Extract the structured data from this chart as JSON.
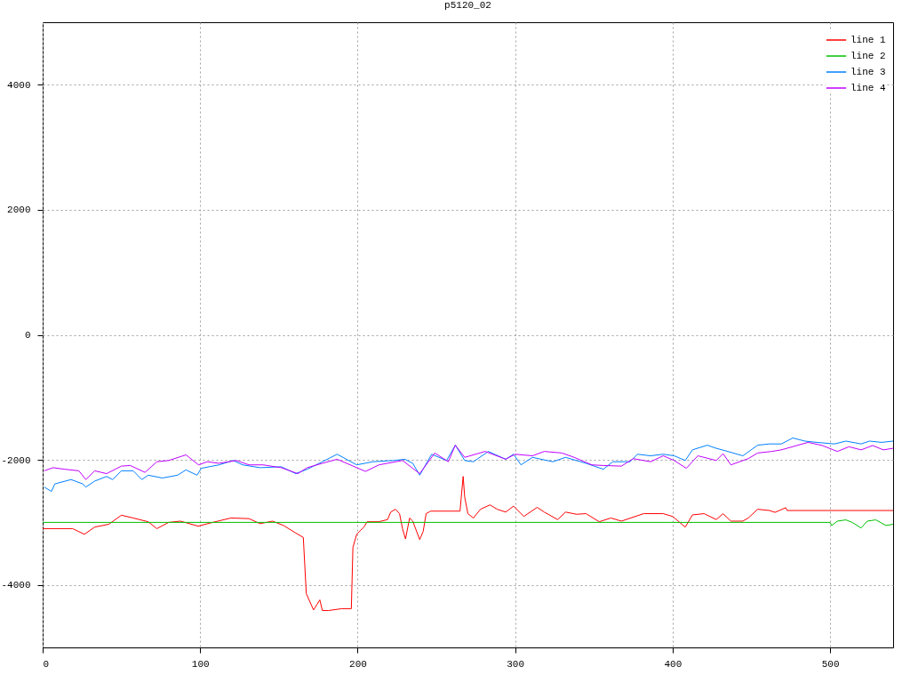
{
  "chart_data": {
    "type": "line",
    "title": "p5120_02",
    "xlim": [
      0,
      540
    ],
    "xticks": [
      0,
      100,
      200,
      300,
      400,
      500
    ],
    "ylim": [
      -5000,
      5000
    ],
    "yticks": [
      -4000,
      -2000,
      0,
      2000,
      4000
    ],
    "grid": true,
    "legend": "top right",
    "marker": "none",
    "line_style": "solid",
    "series": [
      {
        "name": "line 1",
        "color": "#ff0000",
        "x": [
          0,
          19,
          26.5,
          33,
          42,
          50,
          57.5,
          67,
          72.5,
          80,
          87.5,
          98.7,
          108,
          119.5,
          131,
          138,
          146,
          153,
          160.7,
          165.5,
          167.4,
          172,
          176,
          177.6,
          181.5,
          190,
          196,
          197,
          199.4,
          204,
          206,
          213.5,
          219,
          221,
          224,
          226.6,
          228.5,
          230.4,
          233,
          235,
          239.4,
          241.6,
          243.5,
          246.3,
          265,
          267,
          268,
          270,
          273.5,
          278,
          284,
          288.6,
          294,
          299,
          305.5,
          314,
          318.5,
          327,
          332,
          339,
          345,
          353.4,
          360.8,
          367.5,
          381.6,
          394,
          400,
          408,
          412.6,
          420,
          427.7,
          432,
          437,
          444.6,
          448,
          454,
          461.5,
          465,
          471.8,
          472.8,
          540
        ],
        "values": [
          -3100,
          -3100,
          -3190,
          -3075,
          -3030,
          -2885,
          -2930,
          -2990,
          -3100,
          -3000,
          -2980,
          -3060,
          -3000,
          -2930,
          -2940,
          -3020,
          -2980,
          -3050,
          -3170,
          -3240,
          -4140,
          -4400,
          -4240,
          -4410,
          -4410,
          -4380,
          -4380,
          -3400,
          -3190,
          -3075,
          -2990,
          -2990,
          -2955,
          -2835,
          -2790,
          -2860,
          -3100,
          -3265,
          -2930,
          -2980,
          -3275,
          -3145,
          -2860,
          -2820,
          -2820,
          -2265,
          -2600,
          -2860,
          -2930,
          -2790,
          -2720,
          -2790,
          -2835,
          -2740,
          -2905,
          -2760,
          -2835,
          -2955,
          -2835,
          -2870,
          -2860,
          -2990,
          -2930,
          -2980,
          -2860,
          -2860,
          -2905,
          -3075,
          -2880,
          -2860,
          -2955,
          -2860,
          -2980,
          -2980,
          -2930,
          -2790,
          -2810,
          -2840,
          -2765,
          -2810,
          -2810
        ]
      },
      {
        "name": "line 2",
        "color": "#00c000",
        "x": [
          0,
          500,
          501,
          504.6,
          510,
          514,
          519.7,
          523.5,
          529,
          535.5,
          540
        ],
        "values": [
          -3000,
          -3000,
          -3050,
          -2980,
          -2960,
          -3000,
          -3090,
          -2980,
          -2960,
          -3050,
          -3030
        ]
      },
      {
        "name": "line 3",
        "color": "#0080ff",
        "x": [
          1,
          5.6,
          7.7,
          18,
          25.5,
          27.4,
          33,
          40.6,
          44.4,
          50,
          57.5,
          63,
          67,
          76,
          85.7,
          91,
          98,
          100.7,
          112,
          121,
          127,
          138,
          151.5,
          160.7,
          168,
          177.6,
          187,
          199.4,
          209.7,
          222.7,
          230,
          235,
          239.4,
          247,
          256.5,
          262,
          268,
          273.5,
          283,
          294,
          299,
          303.7,
          311,
          324,
          332,
          345,
          356,
          362,
          373,
          377.7,
          386,
          394,
          401,
          408,
          412.6,
          422,
          427.7,
          435,
          444.6,
          454,
          461.5,
          469,
          476.3,
          484,
          491.5,
          502.8,
          510,
          519.7,
          525,
          532.7,
          540
        ],
        "values": [
          -2435,
          -2505,
          -2385,
          -2315,
          -2385,
          -2435,
          -2340,
          -2265,
          -2315,
          -2175,
          -2175,
          -2315,
          -2245,
          -2290,
          -2245,
          -2160,
          -2245,
          -2135,
          -2080,
          -2010,
          -2080,
          -2125,
          -2110,
          -2220,
          -2150,
          -2030,
          -1910,
          -2080,
          -2030,
          -2010,
          -1990,
          -2055,
          -2245,
          -1910,
          -2010,
          -1765,
          -2010,
          -2030,
          -1865,
          -1990,
          -1910,
          -2080,
          -1960,
          -2030,
          -1960,
          -2055,
          -2150,
          -2030,
          -2030,
          -1910,
          -1935,
          -1910,
          -1935,
          -2010,
          -1840,
          -1765,
          -1815,
          -1865,
          -1935,
          -1765,
          -1745,
          -1745,
          -1650,
          -1700,
          -1720,
          -1745,
          -1700,
          -1745,
          -1700,
          -1720,
          -1700
        ]
      },
      {
        "name": "line 4",
        "color": "#c000ff",
        "x": [
          1,
          6.6,
          14,
          23,
          27.4,
          33,
          40.6,
          50,
          55.6,
          65,
          72.5,
          80,
          91,
          99,
          104.5,
          112,
          123,
          131,
          140,
          151.5,
          162,
          168,
          177.6,
          187,
          205,
          213.5,
          228.5,
          239.4,
          249,
          257.6,
          262,
          268,
          281,
          294,
          300,
          311,
          318.5,
          329.7,
          337.5,
          348.7,
          356,
          367.5,
          375,
          386,
          394,
          401,
          408.7,
          416,
          427.7,
          432,
          437,
          448,
          454,
          463,
          469,
          486,
          495,
          504.6,
          512,
          519.7,
          527,
          533.8,
          540
        ],
        "values": [
          -2175,
          -2125,
          -2150,
          -2175,
          -2315,
          -2175,
          -2220,
          -2100,
          -2090,
          -2200,
          -2030,
          -2010,
          -1920,
          -2080,
          -2030,
          -2055,
          -2010,
          -2080,
          -2080,
          -2125,
          -2220,
          -2125,
          -2055,
          -1990,
          -2185,
          -2080,
          -2010,
          -2220,
          -1890,
          -2030,
          -1765,
          -1960,
          -1865,
          -1990,
          -1910,
          -1935,
          -1865,
          -1890,
          -1960,
          -2080,
          -2090,
          -2100,
          -1980,
          -2030,
          -1935,
          -2010,
          -2135,
          -1935,
          -2010,
          -1900,
          -2080,
          -1980,
          -1890,
          -1865,
          -1840,
          -1720,
          -1770,
          -1865,
          -1790,
          -1840,
          -1770,
          -1840,
          -1815
        ]
      }
    ]
  }
}
